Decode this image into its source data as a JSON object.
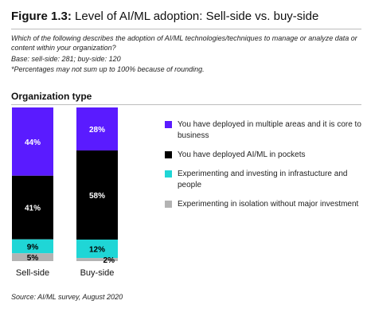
{
  "figure": {
    "label": "Figure 1.3:",
    "title": "Level of AI/ML adoption: Sell-side vs. buy-side",
    "question": "Which of the following describes the adoption of AI/ML technologies/techniques to manage or analyze data or content within your organization?",
    "base": "Base: sell-side: 281; buy-side: 120",
    "note": "*Percentages may not sum up to 100% because of rounding.",
    "source": "Source: AI/ML survey, August 2020"
  },
  "chart_data": {
    "type": "bar",
    "stacked": true,
    "title": "Organization type",
    "categories": [
      "Sell-side",
      "Buy-side"
    ],
    "series": [
      {
        "name": "You have deployed in multiple areas and it is core to business",
        "color": "#5a1bff",
        "values": [
          44,
          28
        ],
        "labels": [
          "44%",
          "28%"
        ]
      },
      {
        "name": "You have deployed AI/ML in pockets",
        "color": "#000000",
        "values": [
          41,
          58
        ],
        "labels": [
          "41%",
          "58%"
        ]
      },
      {
        "name": "Experimenting and investing in infrastucture and people",
        "color": "#1fd6d6",
        "values": [
          9,
          12
        ],
        "labels": [
          "9%",
          "12%"
        ]
      },
      {
        "name": "Experimenting in isolation without major investment",
        "color": "#b3b3b3",
        "values": [
          5,
          2
        ],
        "labels": [
          "5%",
          "2%"
        ]
      }
    ],
    "legend_position": "right",
    "grid": false
  }
}
